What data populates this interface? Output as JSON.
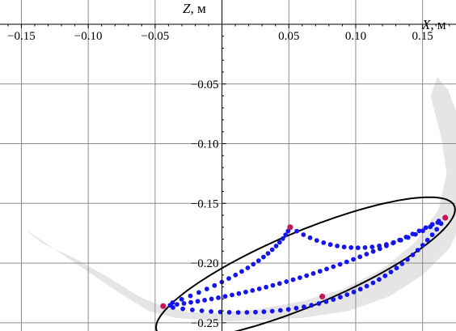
{
  "chart_data": {
    "type": "scatter",
    "x_axis": {
      "label_var": "X",
      "label_unit": ", м",
      "ticks": [
        -0.15,
        -0.1,
        -0.05,
        0.05,
        0.1,
        0.15
      ],
      "tick_labels": [
        "−0.15",
        "−0.10",
        "−0.05",
        "0.05",
        "0.10",
        "0.15"
      ],
      "range": [
        -0.166,
        0.175
      ]
    },
    "y_axis": {
      "label_var": "Z",
      "label_unit": ", м",
      "ticks": [
        -0.05,
        -0.1,
        -0.15,
        -0.2,
        -0.25
      ],
      "tick_labels": [
        "−0.05",
        "−0.10",
        "−0.15",
        "−0.20",
        "−0.25"
      ],
      "range": [
        -0.2535,
        0.0
      ]
    },
    "grid": true,
    "workspace_region": [
      [
        -0.148,
        -0.171
      ],
      [
        -0.115,
        -0.196
      ],
      [
        -0.078,
        -0.224
      ],
      [
        -0.055,
        -0.24
      ],
      [
        -0.035,
        -0.246
      ],
      [
        0.005,
        -0.249
      ],
      [
        0.06,
        -0.246
      ],
      [
        0.095,
        -0.24
      ],
      [
        0.125,
        -0.228
      ],
      [
        0.15,
        -0.21
      ],
      [
        0.17,
        -0.188
      ],
      [
        0.182,
        -0.16
      ],
      [
        0.186,
        -0.125
      ],
      [
        0.181,
        -0.09
      ],
      [
        0.169,
        -0.055
      ],
      [
        0.161,
        -0.044
      ],
      [
        0.156,
        -0.06
      ],
      [
        0.164,
        -0.095
      ],
      [
        0.168,
        -0.125
      ],
      [
        0.162,
        -0.155
      ],
      [
        0.145,
        -0.182
      ],
      [
        0.12,
        -0.205
      ],
      [
        0.09,
        -0.222
      ],
      [
        0.06,
        -0.232
      ],
      [
        0.025,
        -0.239
      ],
      [
        -0.005,
        -0.242
      ],
      [
        -0.025,
        -0.241
      ],
      [
        -0.045,
        -0.236
      ],
      [
        -0.062,
        -0.228
      ],
      [
        -0.085,
        -0.212
      ],
      [
        -0.11,
        -0.196
      ],
      [
        -0.135,
        -0.183
      ]
    ],
    "ellipse": {
      "cx": 0.0625,
      "cy": -0.2045,
      "rx": 0.123,
      "ry": 0.0305,
      "angle_deg": 25.5
    },
    "corner_points": [
      [
        -0.044,
        -0.236
      ],
      [
        0.051,
        -0.17
      ],
      [
        0.167,
        -0.162
      ],
      [
        0.075,
        -0.228
      ]
    ],
    "trajectories": [
      {
        "name": "",
        "from": [
          0.051,
          -0.17
        ],
        "to": [
          0.167,
          -0.162
        ],
        "control": [
          0.105,
          -0.208
        ],
        "n": 22
      },
      {
        "name": "",
        "from": [
          -0.044,
          -0.236
        ],
        "to": [
          0.051,
          -0.17
        ],
        "control": [
          0.035,
          -0.205
        ],
        "n": 22
      },
      {
        "name": "",
        "from": [
          -0.044,
          -0.236
        ],
        "to": [
          0.167,
          -0.162
        ],
        "control": [
          0.105,
          -0.262
        ],
        "n": 40
      },
      {
        "name": "",
        "from": [
          -0.044,
          -0.236
        ],
        "to": [
          0.167,
          -0.162
        ],
        "control": [
          0.065,
          -0.222
        ],
        "n": 42
      }
    ],
    "colors": {
      "region": "#e5e5e5",
      "grid": "#8c8c8c",
      "axis": "#000000",
      "ellipse": "#000000",
      "points": "#1414ee",
      "corners": "#c2185b"
    }
  }
}
